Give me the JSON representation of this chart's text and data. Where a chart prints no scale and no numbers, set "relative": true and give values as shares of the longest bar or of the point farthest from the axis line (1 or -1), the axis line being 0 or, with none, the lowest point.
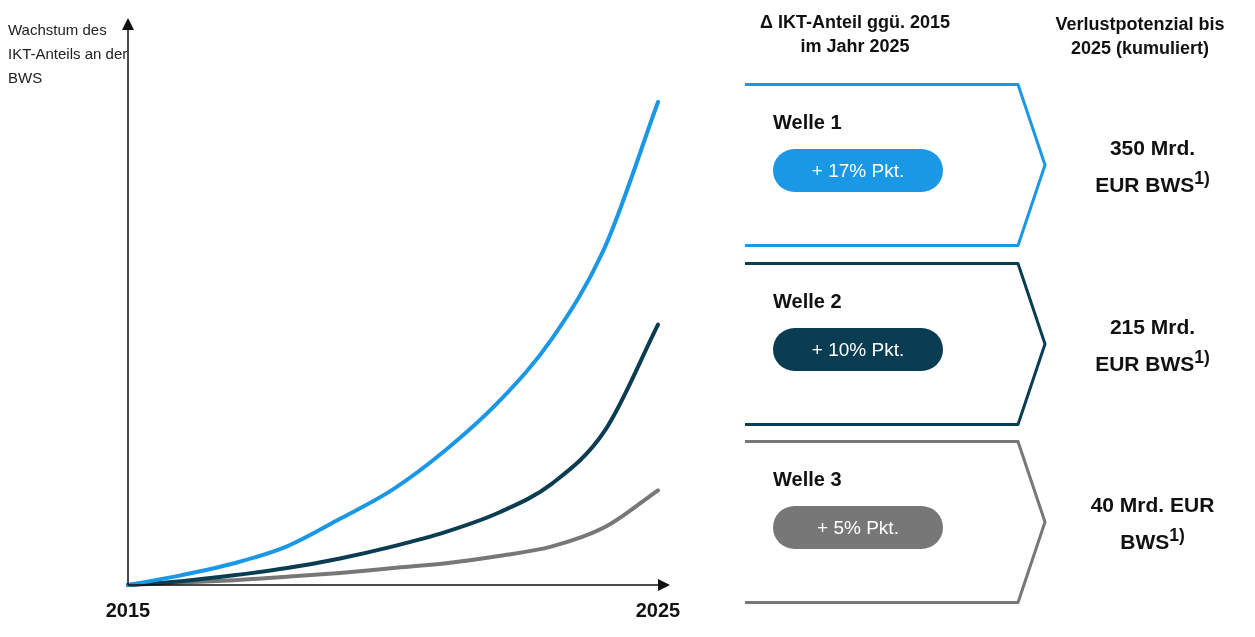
{
  "chart_data": [
    {
      "type": "line",
      "relative": true,
      "ylabel": "Wachstum des IKT-Anteils an der BWS",
      "xlim": [
        2015,
        2025
      ],
      "xticks": [
        2015,
        2025
      ],
      "grid": false,
      "legend": false,
      "marker": "none",
      "line_style": "solid",
      "series": [
        {
          "color": "#1a97e5",
          "x": [
            2015,
            2016,
            2017,
            2018,
            2019,
            2020,
            2021,
            2022,
            2023,
            2024,
            2025
          ],
          "values": [
            0,
            0.02,
            0.045,
            0.08,
            0.137,
            0.198,
            0.28,
            0.38,
            0.51,
            0.7,
            1
          ]
        },
        {
          "color": "#0b3d52",
          "x": [
            2015,
            2016,
            2017,
            2018,
            2019,
            2020,
            2021,
            2022,
            2023,
            2024,
            2025
          ],
          "values": [
            0,
            0.008,
            0.02,
            0.035,
            0.055,
            0.08,
            0.11,
            0.15,
            0.21,
            0.32,
            0.539
          ]
        },
        {
          "color": "#777777",
          "x": [
            2015,
            2016,
            2017,
            2018,
            2019,
            2020,
            2021,
            2022,
            2023,
            2024,
            2025
          ],
          "values": [
            0,
            0.005,
            0.01,
            0.017,
            0.025,
            0.035,
            0.045,
            0.06,
            0.08,
            0.12,
            0.196
          ]
        }
      ]
    },
    {
      "type": "other",
      "annotations": [
        "Δ IKT-Anteil ggü. 2015 im Jahr 2025",
        "Verlustpotenzial bis 2025 (kumuliert)",
        "Welle 1",
        "+ 17% Pkt.",
        "350 Mrd. EUR BWS$^{1)}$",
        "Welle 2",
        "+ 10% Pkt.",
        "215 Mrd. EUR BWS$^{1)}$",
        "Welle 3",
        "+ 5% Pkt.",
        "40 Mrd. EUR BWS$^{1)}$"
      ]
    }
  ]
}
